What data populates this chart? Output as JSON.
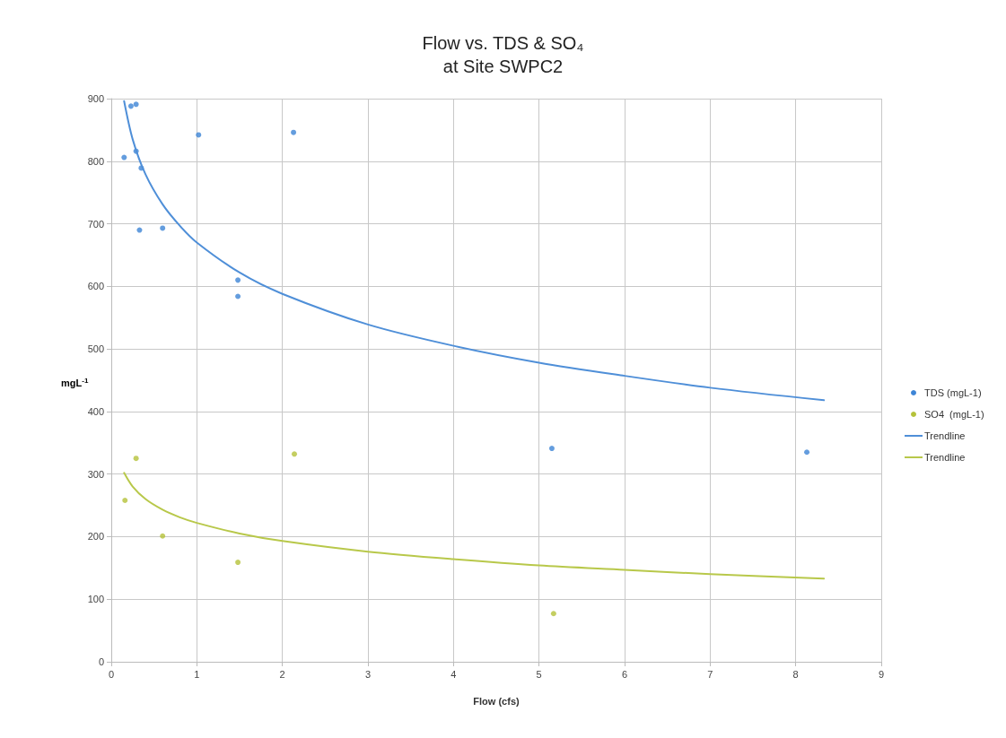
{
  "chart_data": {
    "type": "scatter",
    "title": "Flow vs. TDS & SO₄\nat Site SWPC2",
    "xlabel": "Flow (cfs)",
    "ylabel": "mgL$^{-1}$",
    "xlim": [
      0,
      9
    ],
    "xticks": [
      0,
      1,
      2,
      3,
      4,
      5,
      6,
      7,
      8,
      9
    ],
    "ylim": [
      0,
      900
    ],
    "yticks": [
      0,
      100,
      200,
      300,
      400,
      500,
      600,
      700,
      800,
      900
    ],
    "grid": true,
    "legend": "right",
    "marker": "circle",
    "series": [
      {
        "name": "TDS (mgL-1)",
        "color": "#3d85d6",
        "x": [
          0.15,
          0.23,
          0.29,
          0.29,
          0.35,
          0.33,
          0.6,
          1.02,
          1.48,
          1.48,
          2.13,
          5.15,
          8.13
        ],
        "values": [
          806,
          888,
          891,
          816,
          789,
          690,
          693,
          842,
          610,
          584,
          846,
          341,
          335
        ]
      },
      {
        "name": "SO4  (mgL-1)",
        "color": "#b5c23a",
        "x": [
          0.29,
          0.16,
          0.6,
          1.48,
          2.14,
          5.17
        ],
        "values": [
          325,
          258,
          201,
          159,
          332,
          77
        ]
      },
      {
        "name": "Trendline",
        "type": "line",
        "marker": "none",
        "color": "#4f8fd8",
        "x": [
          0.15,
          0.25,
          0.4,
          0.6,
          0.8,
          1,
          1.5,
          2,
          3,
          4,
          5,
          6,
          7,
          8.33
        ],
        "values": [
          896,
          835,
          779,
          731,
          697,
          670,
          622,
          588,
          539,
          505,
          478,
          457,
          438,
          418
        ]
      },
      {
        "name": "Trendline",
        "type": "line",
        "marker": "none",
        "color": "#b8c84a",
        "x": [
          0.15,
          0.25,
          0.4,
          0.6,
          0.8,
          1,
          1.5,
          2,
          3,
          4,
          5,
          6,
          7,
          8.33
        ],
        "values": [
          302,
          280,
          260,
          243,
          231,
          222,
          205,
          193,
          176,
          164,
          154,
          147,
          140,
          133
        ]
      }
    ]
  }
}
